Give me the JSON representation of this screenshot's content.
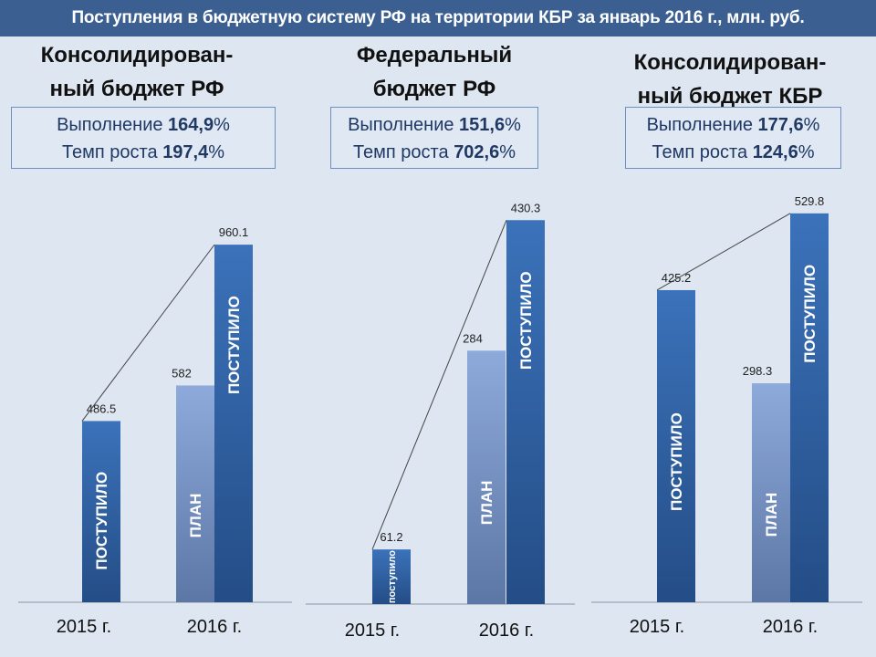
{
  "header": {
    "title": "Поступления в бюджетную систему РФ на территории КБР за январь 2016 г., млн. руб."
  },
  "panels": [
    {
      "title_line1": "Консолидирован-",
      "title_line2": "ный бюджет РФ",
      "exec_label": "Выполнение",
      "exec_value": "164,9",
      "growth_label": "Темп роста",
      "growth_value": "197,4",
      "pct": "%"
    },
    {
      "title_line1": "Федеральный",
      "title_line2": "бюджет РФ",
      "exec_label": "Выполнение",
      "exec_value": "151,6",
      "growth_label": "Темп роста",
      "growth_value": "702,6",
      "pct": "%"
    },
    {
      "title_line1": "Консолидирован-",
      "title_line2": "ный бюджет КБР",
      "exec_label": "Выполнение",
      "exec_value": "177,6",
      "growth_label": "Темп роста",
      "growth_value": "124,6",
      "pct": "%"
    }
  ],
  "colors": {
    "posted_top": "#3b72ba",
    "posted_bottom": "#244d86",
    "plan_top": "#8eaadb",
    "plan_bottom": "#5c77a5",
    "axis": "#8c96a3"
  },
  "chart_data": [
    {
      "type": "bar",
      "title": "Консолидированный бюджет РФ",
      "categories": [
        "2015 г.",
        "2016 г."
      ],
      "ylim": [
        0,
        1078
      ],
      "bars": [
        {
          "category": "2015 г.",
          "series": "ПОСТУПИЛО",
          "value": 486.5,
          "label": "486.5"
        },
        {
          "category": "2016 г.",
          "series": "ПЛАН",
          "value": 582,
          "label": "582"
        },
        {
          "category": "2016 г.",
          "series": "ПОСТУПИЛО",
          "value": 960.1,
          "label": "960.1"
        }
      ]
    },
    {
      "type": "bar",
      "title": "Федеральный бюджет РФ",
      "categories": [
        "2015 г.",
        "2016 г."
      ],
      "ylim": [
        0,
        450
      ],
      "bars": [
        {
          "category": "2015 г.",
          "series": "поступило",
          "value": 61.2,
          "label": "61.2"
        },
        {
          "category": "2016 г.",
          "series": "ПЛАН",
          "value": 284,
          "label": "284"
        },
        {
          "category": "2016 г.",
          "series": "ПОСТУПИЛО",
          "value": 430.3,
          "label": "430.3"
        }
      ]
    },
    {
      "type": "bar",
      "title": "Консолидированный бюджет КБР",
      "categories": [
        "2015 г.",
        "2016 г."
      ],
      "ylim": [
        0,
        547
      ],
      "bars": [
        {
          "category": "2015 г.",
          "series": "ПОСТУПИЛО",
          "value": 425.2,
          "label": "425.2"
        },
        {
          "category": "2016 г.",
          "series": "ПЛАН",
          "value": 298.3,
          "label": "298.3"
        },
        {
          "category": "2016 г.",
          "series": "ПОСТУПИЛО",
          "value": 529.8,
          "label": "529.8"
        }
      ]
    }
  ]
}
